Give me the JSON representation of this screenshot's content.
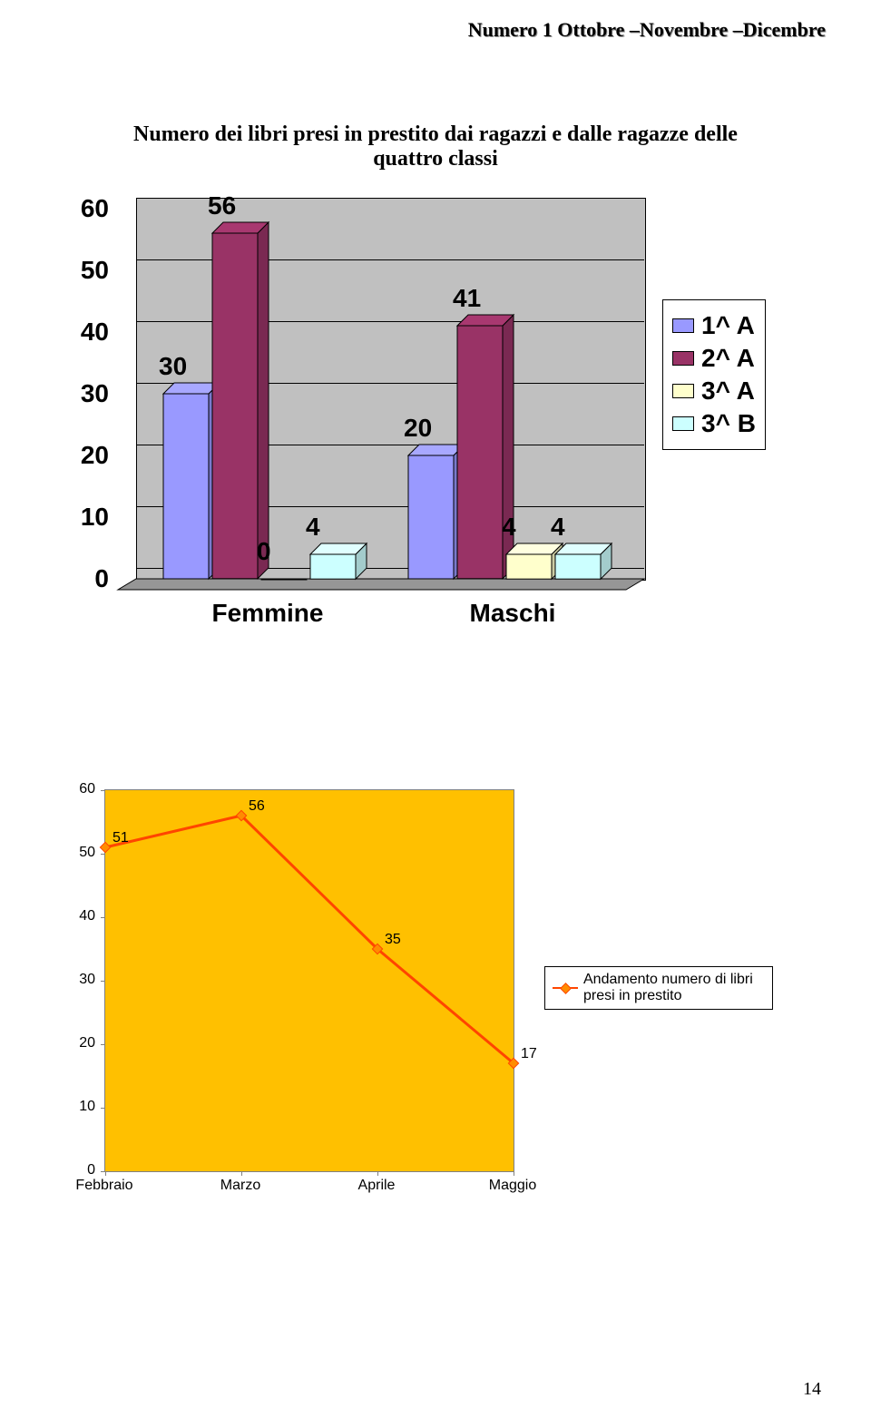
{
  "header_text": "Numero 1 Ottobre –Novembre –Dicembre",
  "page_number": "14",
  "chart1": {
    "type": "bar3d",
    "title_line1": "Numero dei libri presi in prestito dai ragazzi e dalle ragazze delle",
    "title_line2": "quattro classi",
    "categories": [
      "Femmine",
      "Maschi"
    ],
    "series": [
      {
        "name": "1^ A",
        "color": "#9999ff",
        "values": [
          30,
          20
        ]
      },
      {
        "name": "2^ A",
        "color": "#993366",
        "values": [
          56,
          41
        ]
      },
      {
        "name": "3^ A",
        "color": "#ffffcc",
        "values": [
          0,
          4
        ]
      },
      {
        "name": "3^ B",
        "color": "#ccffff",
        "values": [
          4,
          4
        ]
      }
    ],
    "ylim": [
      0,
      60
    ],
    "ytick_step": 10,
    "back_wall_color": "#c0c0c0",
    "floor_color": "#969696",
    "label_fontsize": 28,
    "label_fontweight": "bold"
  },
  "chart2": {
    "type": "line",
    "plot_bg": "#ffc000",
    "line_color": "#ff4500",
    "marker_fill": "#ff8c00",
    "categories": [
      "Febbraio",
      "Marzo",
      "Aprile",
      "Maggio"
    ],
    "values": [
      51,
      56,
      35,
      17
    ],
    "ylim": [
      0,
      60
    ],
    "ytick_step": 10,
    "legend_label": "Andamento numero di libri presi in prestito",
    "label_fontsize": 16
  }
}
